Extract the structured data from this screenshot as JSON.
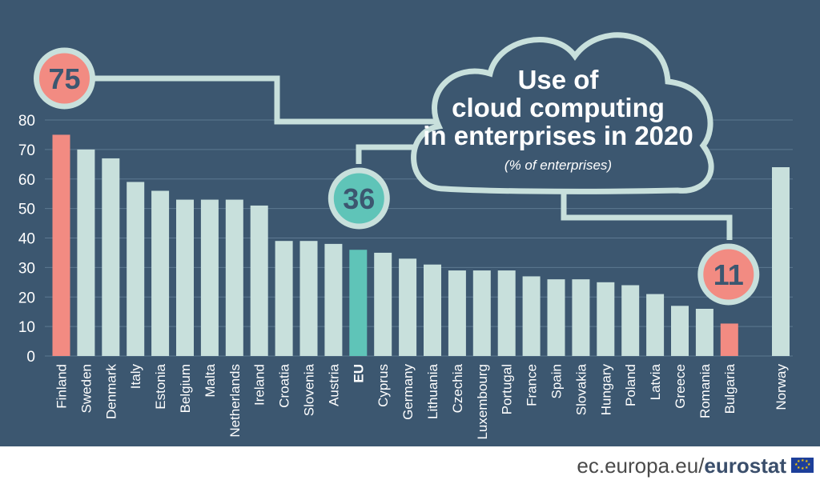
{
  "chart_data": {
    "type": "bar",
    "title": "Use of cloud computing in enterprises in 2020",
    "subtitle": "(% of enterprises)",
    "ylim": [
      0,
      80
    ],
    "yticks": [
      0,
      10,
      20,
      30,
      40,
      50,
      60,
      70,
      80
    ],
    "grid": true,
    "categories": [
      "Finland",
      "Sweden",
      "Denmark",
      "Italy",
      "Estonia",
      "Belgium",
      "Malta",
      "Netherlands",
      "Ireland",
      "Croatia",
      "Slovenia",
      "Austria",
      "EU",
      "Cyprus",
      "Germany",
      "Lithuania",
      "Czechia",
      "Luxembourg",
      "Portugal",
      "France",
      "Spain",
      "Slovakia",
      "Hungary",
      "Poland",
      "Latvia",
      "Greece",
      "Romania",
      "Bulgaria",
      "Norway"
    ],
    "values": [
      75,
      70,
      67,
      59,
      56,
      53,
      53,
      53,
      51,
      39,
      39,
      38,
      36,
      35,
      33,
      31,
      29,
      29,
      29,
      27,
      26,
      26,
      25,
      24,
      21,
      17,
      16,
      11,
      64
    ],
    "highlights": [
      {
        "category": "Finland",
        "label": "75",
        "color": "#f28b82"
      },
      {
        "category": "EU",
        "label": "36",
        "color": "#5fc4b8"
      },
      {
        "category": "Bulgaria",
        "label": "11",
        "color": "#f28b82"
      }
    ],
    "colors": {
      "background": "#3c5770",
      "bar_default": "#c8e0dc",
      "bar_highlight_max_min": "#f28b82",
      "bar_eu": "#5fc4b8",
      "callout_border": "#c8e0dc",
      "text": "#ffffff",
      "label_text": "#3c5770"
    }
  },
  "footer": {
    "site": "ec.europa.eu/",
    "brand": "eurostat",
    "logo_icon": "eu-flag-icon"
  }
}
